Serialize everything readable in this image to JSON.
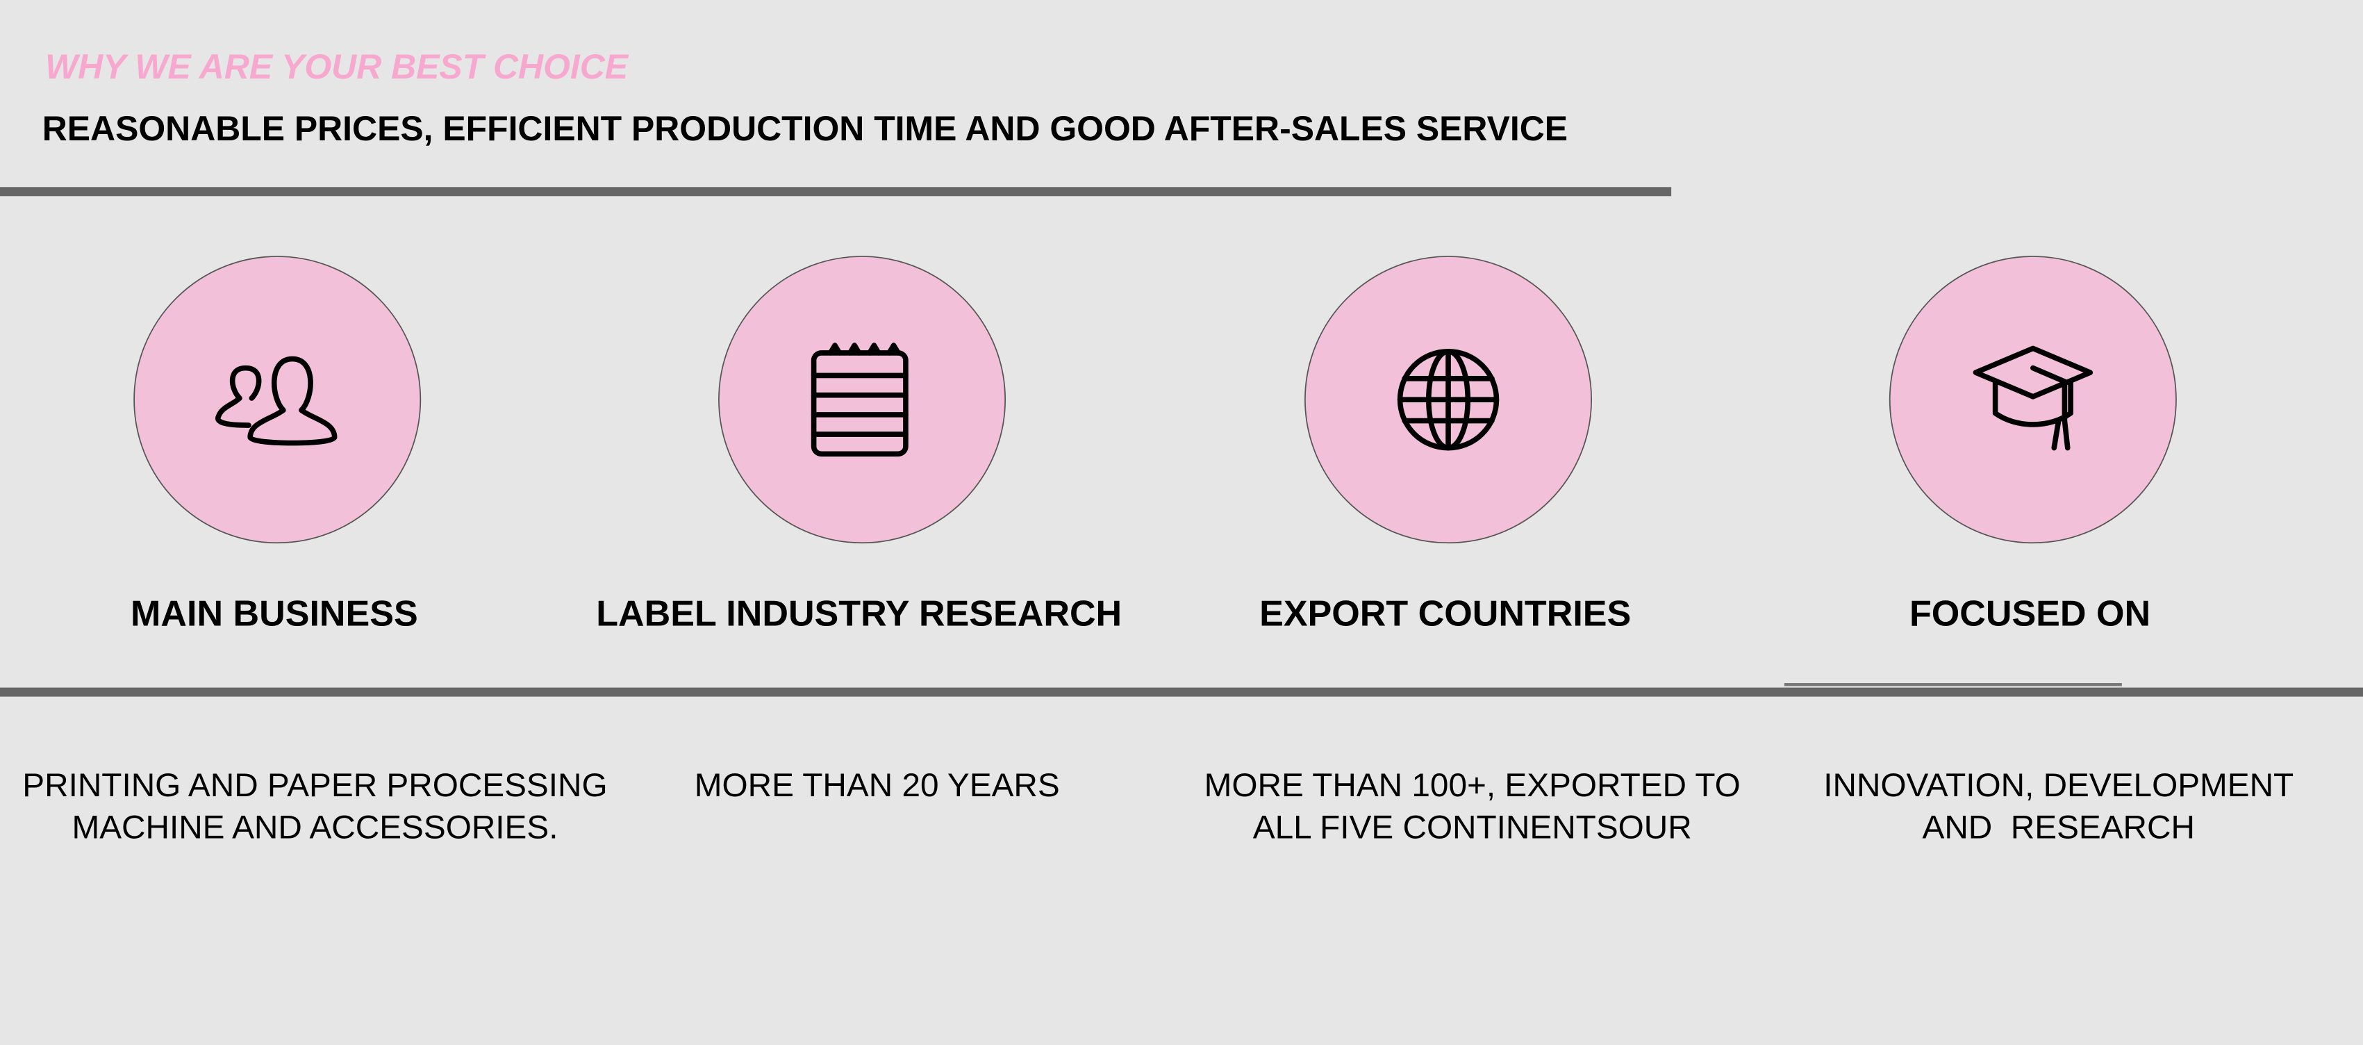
{
  "header": {
    "eyebrow": "WHY WE ARE YOUR BEST CHOICE",
    "title": "REASONABLE PRICES, EFFICIENT PRODUCTION TIME AND GOOD AFTER-SALES SERVICE"
  },
  "features": [
    {
      "label": "MAIN BUSINESS",
      "description": [
        "PRINTING AND PAPER PROCESSING",
        "MACHINE AND ACCESSORIES."
      ]
    },
    {
      "label": "LABEL INDUSTRY RESEARCH",
      "description": [
        "MORE THAN 20 YEARS"
      ]
    },
    {
      "label": "EXPORT COUNTRIES",
      "description": [
        "MORE THAN 100+, EXPORTED TO",
        "ALL FIVE CONTINENTSOUR"
      ]
    },
    {
      "label": "FOCUSED ON",
      "description": [
        "INNOVATION, DEVELOPMENT",
        "AND  RESEARCH"
      ]
    }
  ]
}
